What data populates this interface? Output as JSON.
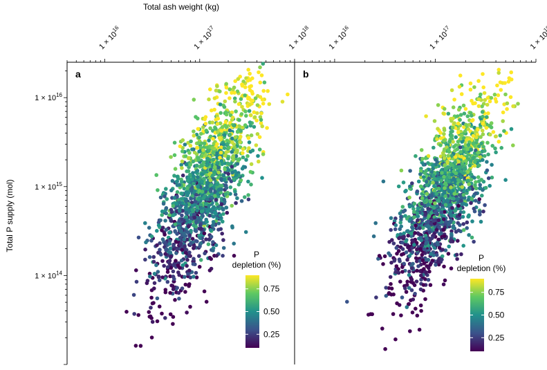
{
  "chart_data": {
    "type": "scatter",
    "x_title": "Total ash weight (kg)",
    "y_title": "Total P supply (mol)",
    "x_scale": "log",
    "y_scale": "log",
    "xlim": [
      4000000000000000.0,
      1e+18
    ],
    "ylim": [
      10000000000000.0,
      2.5e+16
    ],
    "x_tick_values": [
      1e+16,
      1e+17,
      1e+18
    ],
    "x_tick_labels": [
      "1 × 10",
      "1 × 10",
      "1 × 10"
    ],
    "x_tick_exponents": [
      "16",
      "17",
      "18"
    ],
    "y_tick_values": [
      1e+16,
      1000000000000000.0,
      100000000000000.0
    ],
    "y_tick_labels": [
      "1 × 10",
      "1 × 10",
      "1 × 10"
    ],
    "y_tick_exponents": [
      "16",
      "15",
      "14"
    ],
    "colorbar": {
      "title_line1": "P",
      "title_line2": "depletion (%)",
      "range": [
        0.1,
        0.9
      ],
      "ticks": [
        0.75,
        0.5,
        0.25
      ],
      "tick_labels": [
        "0.75",
        "0.50",
        "0.25"
      ],
      "colors": [
        "#440154",
        "#3b528b",
        "#21918c",
        "#5ec962",
        "#fde725"
      ]
    },
    "panels": [
      {
        "label": "a",
        "x_center_log10": 17.05,
        "x_spread": 0.26,
        "y_center_log10": 14.95,
        "y_spread": 0.55,
        "correlation": 0.72,
        "n_points": 1600,
        "seed": 17
      },
      {
        "label": "b",
        "x_center_log10": 17.1,
        "x_spread": 0.25,
        "y_center_log10": 14.95,
        "y_spread": 0.55,
        "correlation": 0.72,
        "n_points": 1600,
        "seed": 91
      }
    ]
  }
}
